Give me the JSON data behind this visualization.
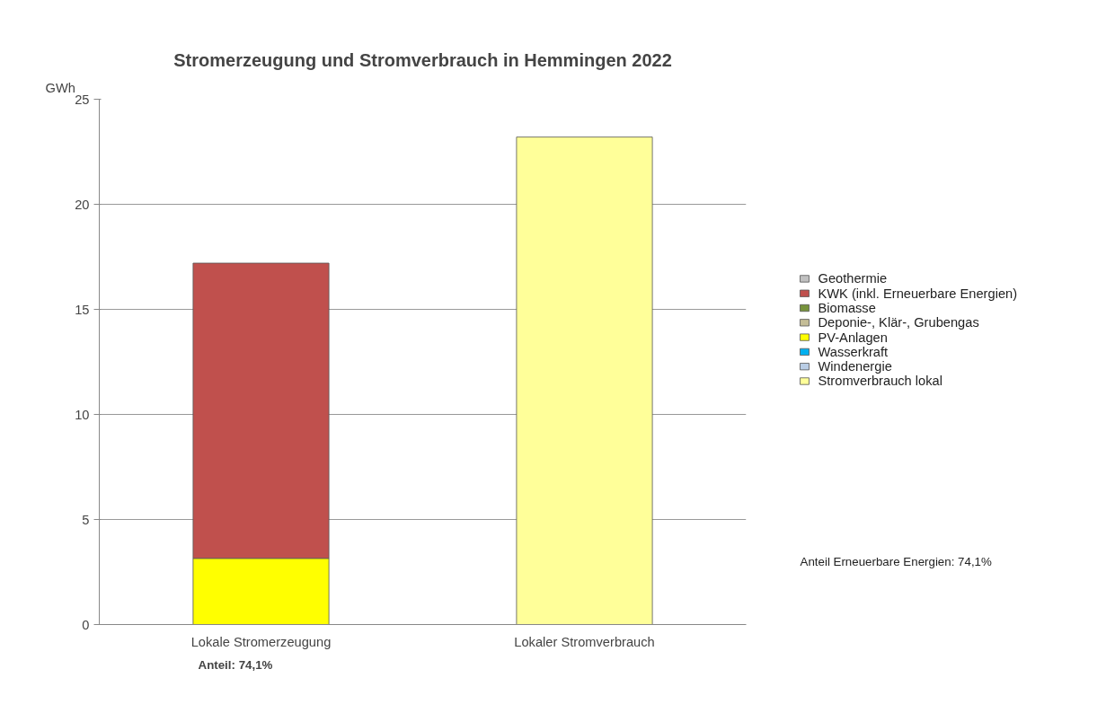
{
  "chart_data": {
    "type": "bar",
    "stacked": true,
    "title": "Stromerzeugung und Stromverbrauch in Hemmingen 2022",
    "ylabel": "GWh",
    "categories": [
      "Lokale Stromerzeugung",
      "Lokaler Stromverbrauch"
    ],
    "series": [
      {
        "name": "Stromverbrauch lokal",
        "color": "#ffff99",
        "values": [
          null,
          23.2
        ]
      },
      {
        "name": "Windenergie",
        "color": "#b9cde5",
        "values": [
          null,
          null
        ]
      },
      {
        "name": "Wasserkraft",
        "color": "#00b0f0",
        "values": [
          null,
          null
        ]
      },
      {
        "name": "PV-Anlagen",
        "color": "#ffff00",
        "values": [
          3.15,
          null
        ]
      },
      {
        "name": "Deponie-, Klär-, Grubengas",
        "color": "#c4bd97",
        "values": [
          null,
          null
        ]
      },
      {
        "name": "Biomasse",
        "color": "#77933c",
        "values": [
          null,
          null
        ]
      },
      {
        "name": "KWK (inkl. Erneuerbare Energien)",
        "color": "#c0504d",
        "values": [
          14.05,
          null
        ]
      },
      {
        "name": "Geothermie",
        "color": "#c0c0c0",
        "values": [
          null,
          null
        ]
      }
    ],
    "ylim": [
      0,
      25
    ],
    "yticks": [
      0,
      5,
      10,
      15,
      20,
      25
    ],
    "grid": "y",
    "legend": "right",
    "annotations": [
      "Anteil Erneuerbare Energien: 74,1%",
      "Anteil: 74,1%"
    ]
  }
}
